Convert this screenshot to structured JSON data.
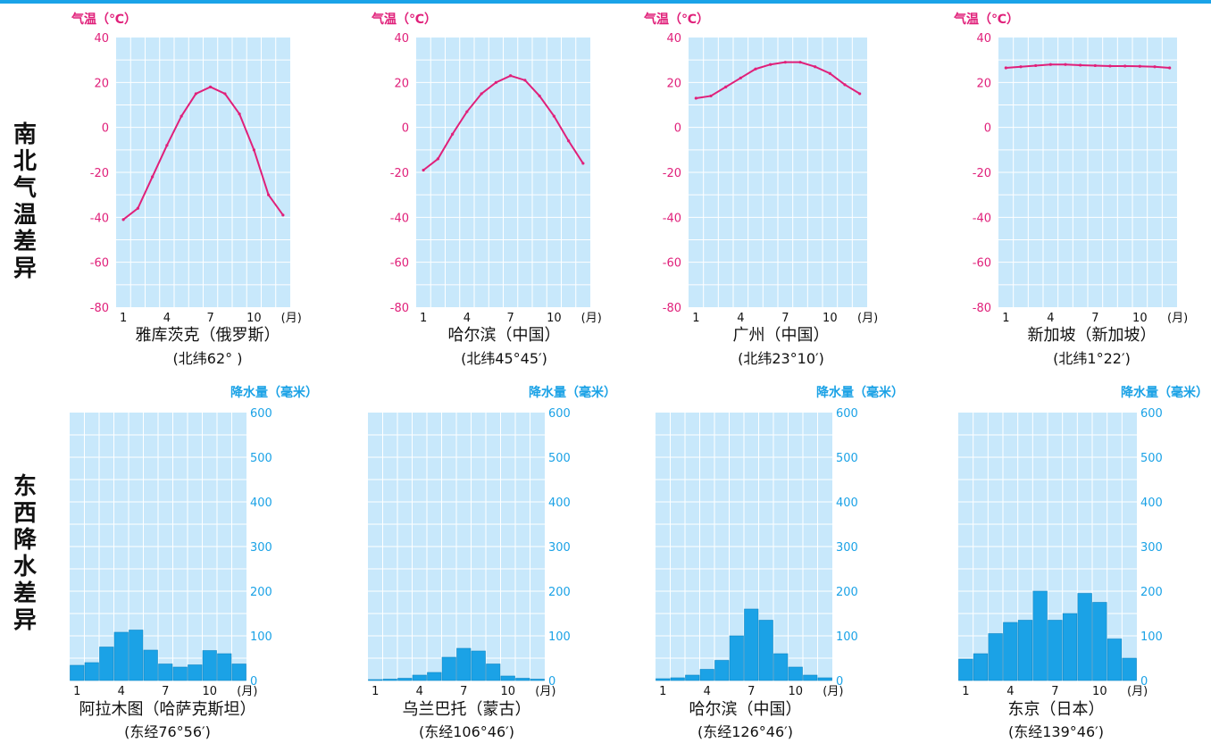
{
  "row_labels": {
    "temp": [
      "南",
      "北",
      "气",
      "温",
      "差",
      "异"
    ],
    "precip": [
      "东",
      "西",
      "降",
      "水",
      "差",
      "异"
    ]
  },
  "colors": {
    "plot_bg": "#c8e8fb",
    "grid": "#ffffff",
    "temp_line": "#e0207a",
    "temp_axis_text": "#e0207a",
    "precip_bar": "#1ba2e6",
    "precip_axis_text": "#1ba2e6",
    "rule": "#1aa3e8"
  },
  "chart_data": [
    {
      "type": "line",
      "ylabel": "气温（℃）",
      "xunit": "(月)",
      "yticks": [
        "40",
        "20",
        "0",
        "-20",
        "-40",
        "-60",
        "-80"
      ],
      "xticks": [
        "1",
        "4",
        "7",
        "10"
      ],
      "ylim": [
        -80,
        40
      ],
      "x": [
        1,
        2,
        3,
        4,
        5,
        6,
        7,
        8,
        9,
        10,
        11,
        12
      ],
      "values": [
        -41,
        -36,
        -22,
        -8,
        5,
        15,
        18,
        15,
        6,
        -10,
        -30,
        -39
      ],
      "caption": "雅库茨克（俄罗斯）",
      "sub": "(北纬62°  )"
    },
    {
      "type": "line",
      "ylabel": "气温（℃）",
      "xunit": "(月)",
      "yticks": [
        "40",
        "20",
        "0",
        "-20",
        "-40",
        "-60",
        "-80"
      ],
      "xticks": [
        "1",
        "4",
        "7",
        "10"
      ],
      "ylim": [
        -80,
        40
      ],
      "x": [
        1,
        2,
        3,
        4,
        5,
        6,
        7,
        8,
        9,
        10,
        11,
        12
      ],
      "values": [
        -19,
        -14,
        -3,
        7,
        15,
        20,
        23,
        21,
        14,
        5,
        -6,
        -16
      ],
      "caption": "哈尔滨（中国）",
      "sub": "(北纬45°45′)"
    },
    {
      "type": "line",
      "ylabel": "气温（℃）",
      "xunit": "(月)",
      "yticks": [
        "40",
        "20",
        "0",
        "-20",
        "-40",
        "-60",
        "-80"
      ],
      "xticks": [
        "1",
        "4",
        "7",
        "10"
      ],
      "ylim": [
        -80,
        40
      ],
      "x": [
        1,
        2,
        3,
        4,
        5,
        6,
        7,
        8,
        9,
        10,
        11,
        12
      ],
      "values": [
        13,
        14,
        18,
        22,
        26,
        28,
        29,
        29,
        27,
        24,
        19,
        15
      ],
      "caption": "广州（中国）",
      "sub": "(北纬23°10′)"
    },
    {
      "type": "line",
      "ylabel": "气温（℃）",
      "xunit": "(月)",
      "yticks": [
        "40",
        "20",
        "0",
        "-20",
        "-40",
        "-60",
        "-80"
      ],
      "xticks": [
        "1",
        "4",
        "7",
        "10"
      ],
      "ylim": [
        -80,
        40
      ],
      "x": [
        1,
        2,
        3,
        4,
        5,
        6,
        7,
        8,
        9,
        10,
        11,
        12
      ],
      "values": [
        26.5,
        27,
        27.5,
        28,
        28,
        27.7,
        27.5,
        27.3,
        27.3,
        27.2,
        27,
        26.5
      ],
      "caption": "新加坡（新加坡）",
      "sub": "(北纬1°22′)"
    },
    {
      "type": "bar",
      "ylabel": "降水量（毫米）",
      "xunit": "(月)",
      "yticks": [
        "600",
        "500",
        "400",
        "300",
        "200",
        "100",
        "0"
      ],
      "xticks": [
        "1",
        "4",
        "7",
        "10"
      ],
      "ylim": [
        0,
        600
      ],
      "x": [
        1,
        2,
        3,
        4,
        5,
        6,
        7,
        8,
        9,
        10,
        11,
        12
      ],
      "values": [
        34,
        40,
        75,
        108,
        113,
        68,
        37,
        30,
        35,
        67,
        60,
        37
      ],
      "caption": "阿拉木图（哈萨克斯坦）",
      "sub": "(东经76°56′)"
    },
    {
      "type": "bar",
      "ylabel": "降水量（毫米）",
      "xunit": "(月)",
      "yticks": [
        "600",
        "500",
        "400",
        "300",
        "200",
        "100",
        "0"
      ],
      "xticks": [
        "1",
        "4",
        "7",
        "10"
      ],
      "ylim": [
        0,
        600
      ],
      "x": [
        1,
        2,
        3,
        4,
        5,
        6,
        7,
        8,
        9,
        10,
        11,
        12
      ],
      "values": [
        2,
        3,
        5,
        12,
        18,
        52,
        72,
        66,
        37,
        10,
        5,
        3
      ],
      "caption": "乌兰巴托（蒙古）",
      "sub": "(东经106°46′)"
    },
    {
      "type": "bar",
      "ylabel": "降水量（毫米）",
      "xunit": "(月)",
      "yticks": [
        "600",
        "500",
        "400",
        "300",
        "200",
        "100",
        "0"
      ],
      "xticks": [
        "1",
        "4",
        "7",
        "10"
      ],
      "ylim": [
        0,
        600
      ],
      "x": [
        1,
        2,
        3,
        4,
        5,
        6,
        7,
        8,
        9,
        10,
        11,
        12
      ],
      "values": [
        4,
        6,
        12,
        25,
        45,
        100,
        160,
        135,
        60,
        30,
        12,
        6
      ],
      "caption": "哈尔滨（中国）",
      "sub": "(东经126°46′)"
    },
    {
      "type": "bar",
      "ylabel": "降水量（毫米）",
      "xunit": "(月)",
      "yticks": [
        "600",
        "500",
        "400",
        "300",
        "200",
        "100",
        "0"
      ],
      "xticks": [
        "1",
        "4",
        "7",
        "10"
      ],
      "ylim": [
        0,
        600
      ],
      "x": [
        1,
        2,
        3,
        4,
        5,
        6,
        7,
        8,
        9,
        10,
        11,
        12
      ],
      "values": [
        48,
        60,
        105,
        130,
        135,
        200,
        135,
        150,
        195,
        175,
        93,
        50
      ],
      "caption": "东京（日本）",
      "sub": "(东经139°46′)"
    }
  ]
}
